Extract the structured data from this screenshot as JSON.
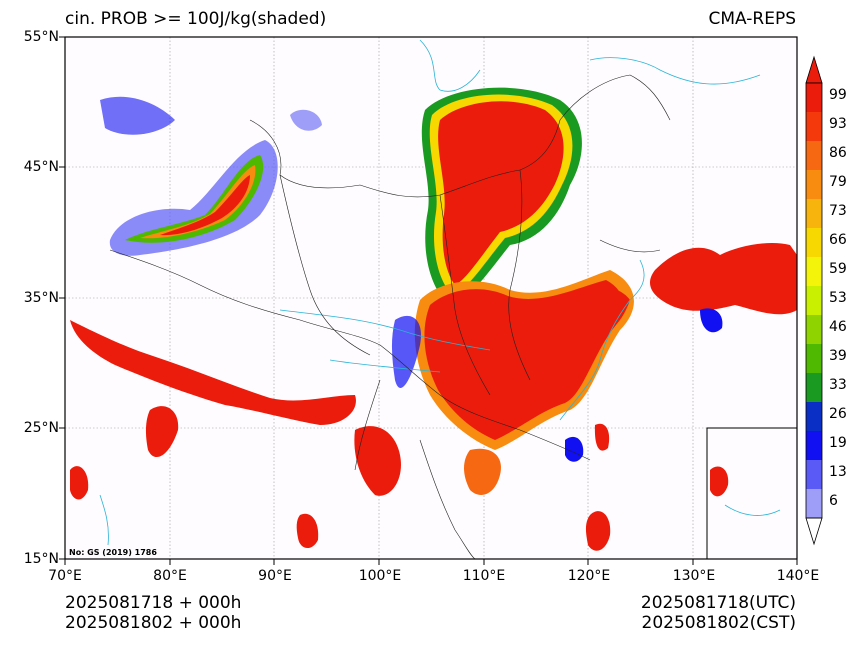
{
  "header": {
    "title_left": "cin. PROB >= 100J/kg(shaded)",
    "title_right": "CMA-REPS"
  },
  "map": {
    "lat_labels": [
      "55°N",
      "45°N",
      "35°N",
      "25°N",
      "15°N"
    ],
    "lon_labels": [
      "70°E",
      "80°E",
      "90°E",
      "100°E",
      "110°E",
      "120°E",
      "130°E",
      "140°E"
    ],
    "credit": "No: GS (2019) 1786",
    "extent": {
      "lon_min": 70,
      "lon_max": 140,
      "lat_min": 15,
      "lat_max": 55
    }
  },
  "colorbar": {
    "ticks": [
      "99",
      "93",
      "86",
      "79",
      "73",
      "66",
      "59",
      "53",
      "46",
      "39",
      "33",
      "26",
      "19",
      "13",
      "6"
    ],
    "colors": [
      "#eb1c0c",
      "#f4390c",
      "#f66812",
      "#f78c10",
      "#f7b40c",
      "#f7d800",
      "#f4f40a",
      "#c8f000",
      "#8fd400",
      "#4fb800",
      "#1b9a22",
      "#0a2fc4",
      "#1010f2",
      "#5a5af6",
      "#9e9ef8"
    ]
  },
  "footer": {
    "left_line1": "2025081718  +  000h",
    "left_line2": "2025081802  +  000h",
    "right_line1": "2025081718(UTC)",
    "right_line2": "2025081802(CST)"
  }
}
